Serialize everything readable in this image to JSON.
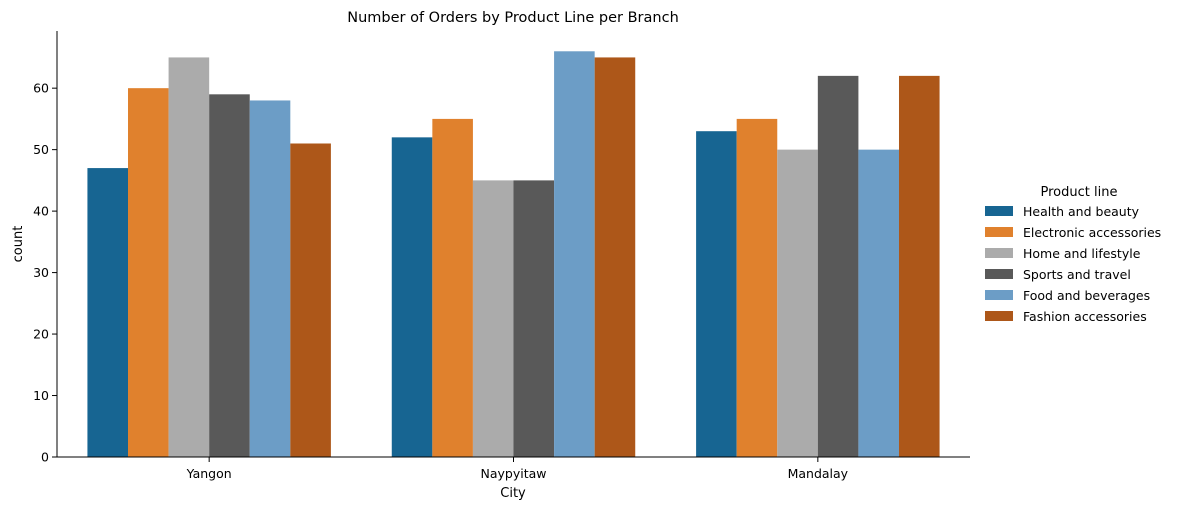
{
  "chart_data": {
    "type": "bar",
    "title": "Number of Orders by Product Line per Branch",
    "xlabel": "City",
    "ylabel": "count",
    "categories": [
      "Yangon",
      "Naypyitaw",
      "Mandalay"
    ],
    "ylim": [
      0,
      69.3
    ],
    "yticks": [
      0,
      10,
      20,
      30,
      40,
      50,
      60
    ],
    "grid": false,
    "legend": {
      "title": "Product line",
      "position": "right"
    },
    "series": [
      {
        "name": "Health and beauty",
        "color": "#176592",
        "values": [
          47,
          52,
          53
        ]
      },
      {
        "name": "Electronic accessories",
        "color": "#e0812d",
        "values": [
          60,
          55,
          55
        ]
      },
      {
        "name": "Home and lifestyle",
        "color": "#ababab",
        "values": [
          65,
          45,
          50
        ]
      },
      {
        "name": "Sports and travel",
        "color": "#595959",
        "values": [
          59,
          45,
          62
        ]
      },
      {
        "name": "Food and beverages",
        "color": "#6c9dc6",
        "values": [
          58,
          66,
          50
        ]
      },
      {
        "name": "Fashion accessories",
        "color": "#ad5719",
        "values": [
          51,
          65,
          62
        ]
      }
    ]
  }
}
